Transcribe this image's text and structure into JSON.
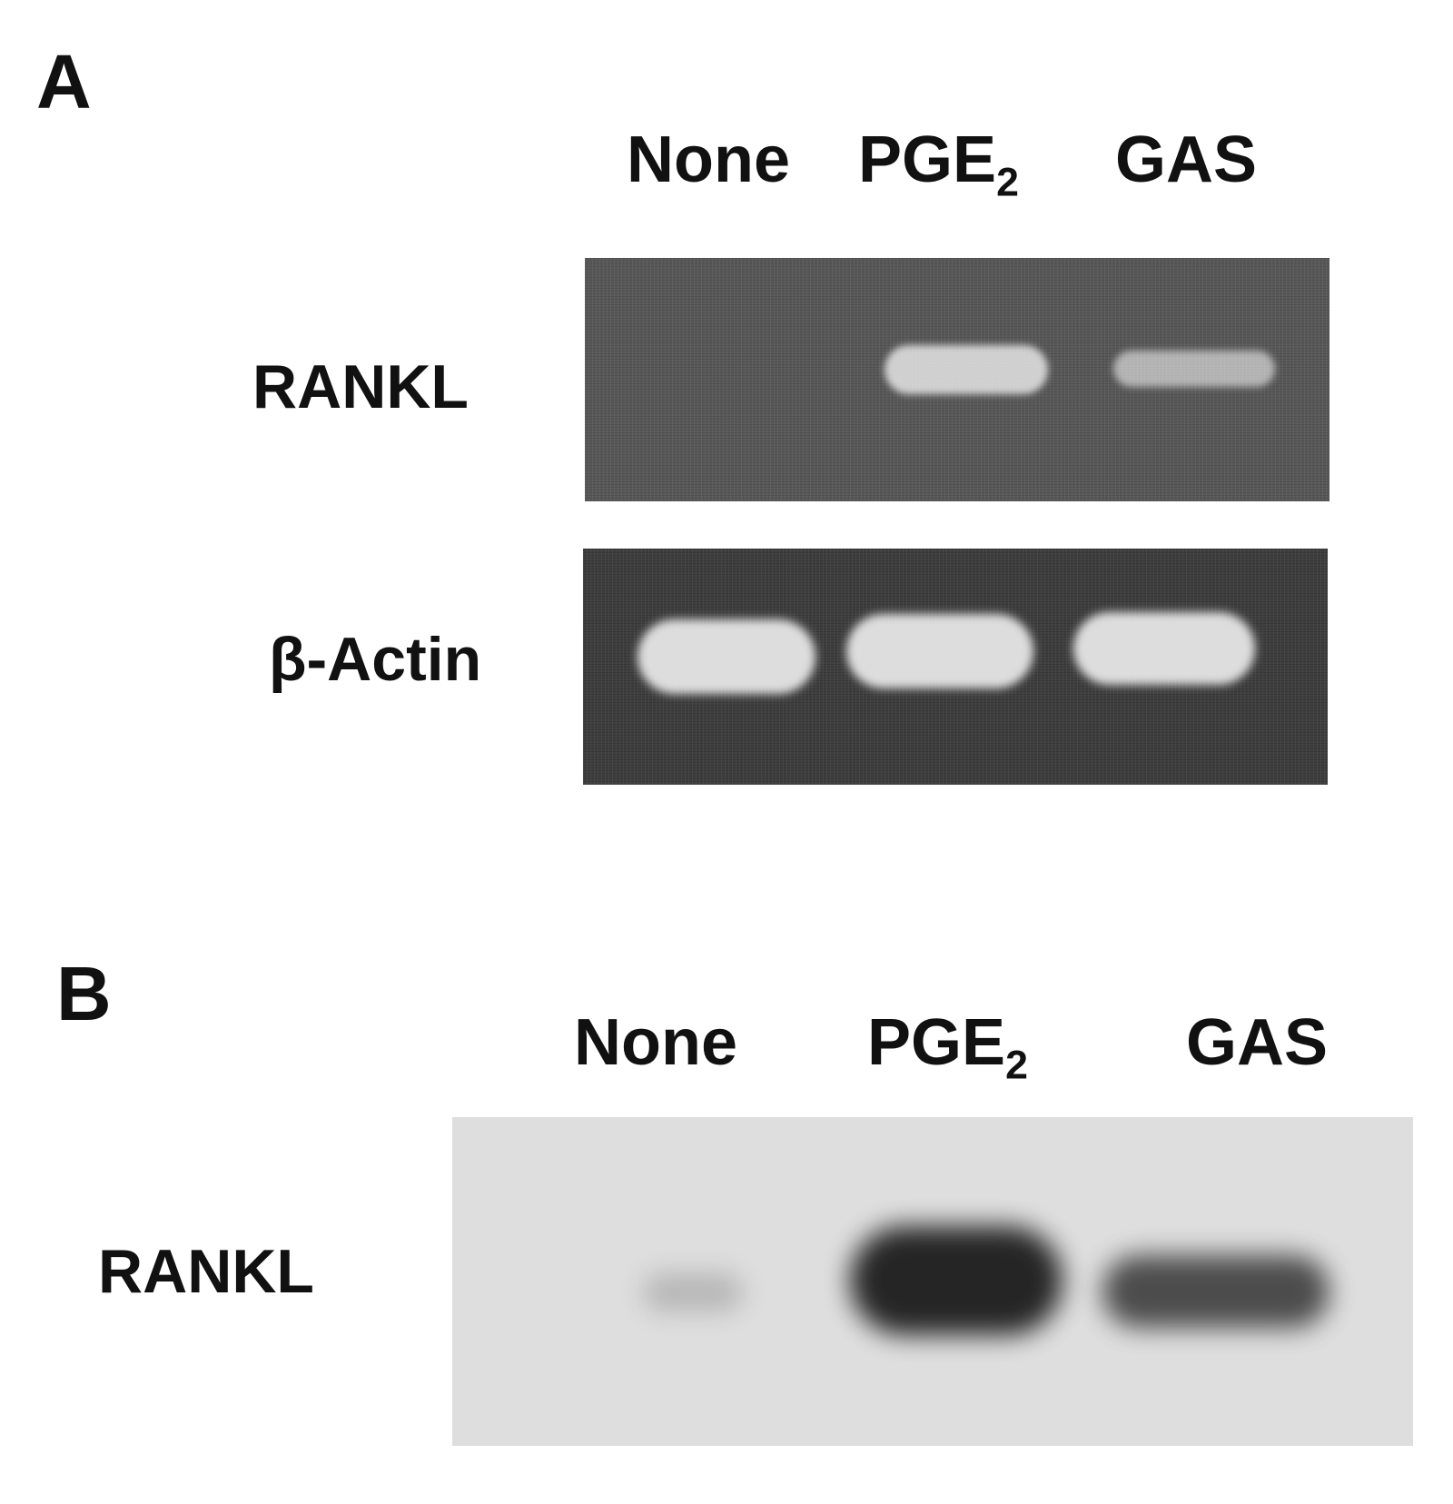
{
  "panel_a": {
    "letter": "A",
    "lanes": [
      {
        "label": "None",
        "sub": ""
      },
      {
        "label": "PGE",
        "sub": "2"
      },
      {
        "label": "GAS",
        "sub": ""
      }
    ],
    "rows": [
      {
        "label": "RANKL",
        "band_intensity": [
          0.0,
          0.85,
          0.65
        ]
      },
      {
        "label": "β-Actin",
        "band_intensity": [
          0.95,
          0.95,
          0.95
        ]
      }
    ]
  },
  "panel_b": {
    "letter": "B",
    "lanes": [
      {
        "label": "None",
        "sub": ""
      },
      {
        "label": "PGE",
        "sub": "2"
      },
      {
        "label": "GAS",
        "sub": ""
      }
    ],
    "rows": [
      {
        "label": "RANKL",
        "band_intensity": [
          0.2,
          0.95,
          0.75
        ]
      }
    ]
  },
  "colors": {
    "gel_rankl_bg": "#585858",
    "gel_actin_bg": "#3e3e3e",
    "blot_bg": "#dedede",
    "fluorescent_band": "#e6e6e6",
    "blot_band": "#1c1c1c"
  }
}
